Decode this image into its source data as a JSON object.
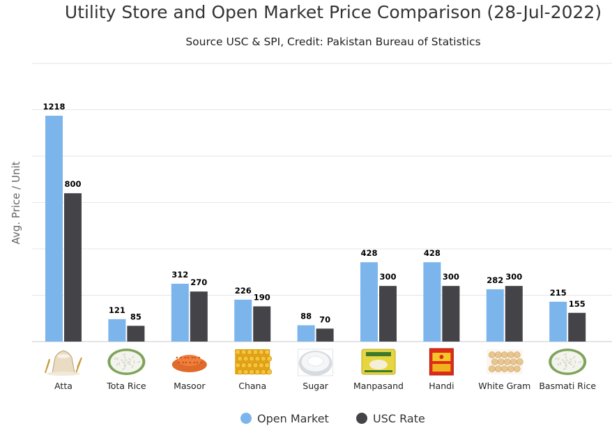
{
  "chart_data": {
    "type": "bar",
    "title": "Utility Store and Open Market Price Comparison (28-Jul-2022)",
    "subtitle": "Source USC & SPI, Credit: Pakistan Bureau of Statistics",
    "xlabel": "",
    "ylabel": "Avg. Price / Unit",
    "ylim": [
      0,
      1500
    ],
    "grid": true,
    "legend": "bottom-center",
    "categories": [
      "Atta",
      "Tota Rice",
      "Masoor",
      "Chana",
      "Sugar",
      "Manpasand",
      "Handi",
      "White Gram",
      "Basmati Rice"
    ],
    "category_icons": [
      "flour-sack-icon",
      "rice-plate-icon",
      "red-lentils-icon",
      "chickpeas-icon",
      "sugar-bowl-icon",
      "manpasand-pack-icon",
      "handi-box-icon",
      "white-gram-icon",
      "basmati-rice-plate-icon"
    ],
    "series": [
      {
        "name": "Open Market",
        "color": "#7cb5ec",
        "values": [
          1218,
          121,
          312,
          226,
          88,
          428,
          428,
          282,
          215
        ]
      },
      {
        "name": "USC Rate",
        "color": "#434348",
        "values": [
          800,
          85,
          270,
          190,
          70,
          300,
          300,
          300,
          155
        ]
      }
    ]
  }
}
